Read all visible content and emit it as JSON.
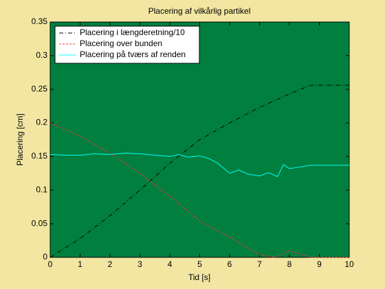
{
  "chart_data": {
    "type": "line",
    "title": "Placering af vilkårlig partikel",
    "xlabel": "Tid [s]",
    "ylabel": "Placering [cm]",
    "xlim": [
      0,
      10
    ],
    "ylim": [
      0,
      0.35
    ],
    "xticks": [
      0,
      1,
      2,
      3,
      4,
      5,
      6,
      7,
      8,
      9,
      10
    ],
    "yticks": [
      0,
      0.05,
      0.1,
      0.15,
      0.2,
      0.25,
      0.3,
      0.35
    ],
    "background": "#007f3f",
    "legend": "upper-left",
    "series": [
      {
        "name": "Placering i længderetning/10",
        "color": "#000000",
        "linestyle": "dashdot",
        "x": [
          0,
          1,
          2,
          3,
          4,
          5,
          6,
          7,
          8,
          8.7,
          10
        ],
        "values": [
          0,
          0.028,
          0.062,
          0.1,
          0.14,
          0.175,
          0.2,
          0.223,
          0.243,
          0.256,
          0.256
        ]
      },
      {
        "name": "Placering over bunden",
        "color": "#ff3030",
        "linestyle": "dashed",
        "x": [
          0,
          1,
          2,
          3,
          4,
          5,
          6,
          7,
          7.5,
          8,
          8.7,
          10
        ],
        "values": [
          0.2,
          0.18,
          0.155,
          0.125,
          0.091,
          0.054,
          0.03,
          0.004,
          0,
          0.01,
          0,
          0
        ]
      },
      {
        "name": "Placering på tværs af renden",
        "color": "#00ffff",
        "linestyle": "solid",
        "x": [
          0,
          0.5,
          1,
          1.5,
          2,
          2.5,
          3,
          3.5,
          4,
          4.3,
          4.6,
          5,
          5.3,
          5.6,
          6,
          6.3,
          6.6,
          7,
          7.3,
          7.6,
          7.8,
          8,
          8.3,
          8.7,
          10
        ],
        "values": [
          0.153,
          0.152,
          0.152,
          0.154,
          0.153,
          0.155,
          0.154,
          0.152,
          0.15,
          0.153,
          0.149,
          0.151,
          0.147,
          0.14,
          0.125,
          0.13,
          0.124,
          0.121,
          0.126,
          0.12,
          0.138,
          0.132,
          0.134,
          0.137,
          0.137
        ]
      }
    ]
  }
}
